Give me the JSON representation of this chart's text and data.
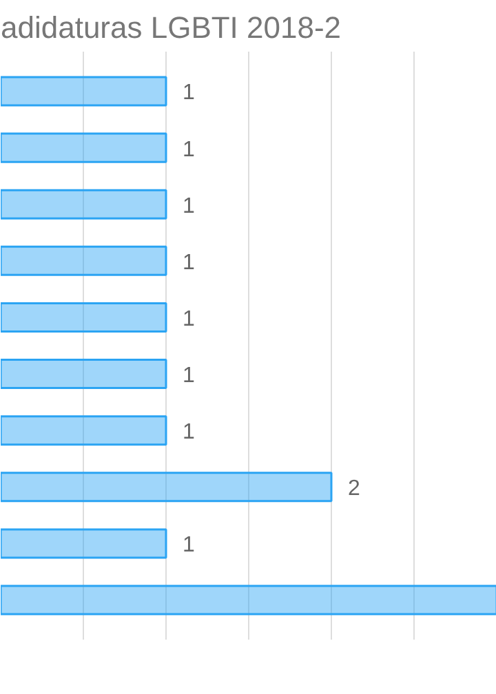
{
  "chart_data": {
    "type": "bar",
    "orientation": "horizontal",
    "title": "adidaturas LGBTI 2018-2",
    "categories": [
      null,
      null,
      null,
      null,
      null,
      null,
      null,
      null,
      null,
      null
    ],
    "values": [
      1,
      1,
      1,
      1,
      1,
      1,
      1,
      2,
      1,
      3
    ],
    "value_labels": [
      "1",
      "1",
      "1",
      "1",
      "1",
      "1",
      "1",
      "2",
      "1",
      null
    ],
    "color": "#2ba4f3",
    "xlim": [
      0,
      3
    ],
    "xticks": [
      {
        "value": 0.5,
        "label": null
      },
      {
        "value": 1,
        "label": null
      },
      {
        "value": 1.5,
        "label": null
      },
      {
        "value": 2,
        "label": null
      },
      {
        "value": 2.5,
        "label": null
      }
    ],
    "tick_labels": false,
    "grid": "x"
  }
}
